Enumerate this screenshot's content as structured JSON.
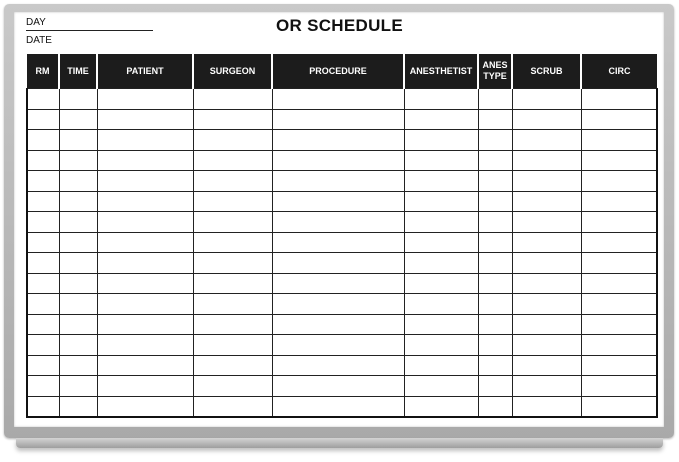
{
  "board": {
    "title": "OR SCHEDULE",
    "day_label": "DAY",
    "date_label": "DATE",
    "columns": [
      "RM",
      "TIME",
      "PATIENT",
      "SURGEON",
      "PROCEDURE",
      "ANESTHETIST",
      "ANES TYPE",
      "SCRUB",
      "CIRC"
    ],
    "row_count": 16,
    "header_color": "#1c1c1c",
    "frame_color": "#b0b0b0"
  }
}
